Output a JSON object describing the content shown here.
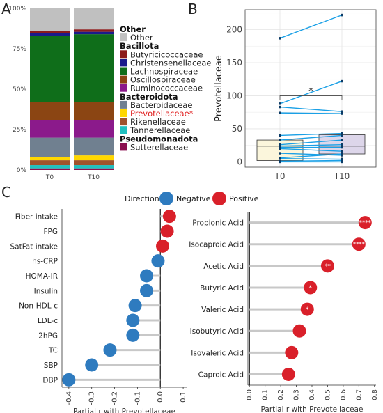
{
  "panel_labels": {
    "a": "A",
    "b": "B",
    "c": "C"
  },
  "colors": {
    "Other": "#c0c0c0",
    "Butyricicoccaceae": "#8b1a1a",
    "Christensenellaceae": "#1a1a8b",
    "Lachnospiraceae": "#0f6e1a",
    "Oscillospiraceae": "#8b4513",
    "Ruminococcaceae": "#8b1a8b",
    "Bacteroidaceae": "#708090",
    "Prevotellaceae": "#ffd700",
    "Rikenellaceae": "#a0522d",
    "Tannerellaceae": "#20c0c0",
    "Sutterellaceae": "#8b1050",
    "prevotella_label": "#e02020",
    "box_T0": "#fbf6dc",
    "box_T10": "#ddd6ea",
    "paired_line": "#1aa0e6",
    "negative": "#2e7bbf",
    "positive": "#d9202a",
    "stem": "#c8c8c8"
  },
  "chart_data": [
    {
      "id": "A",
      "type": "bar",
      "stacked": true,
      "categories": [
        "T0",
        "T10"
      ],
      "y_ticks": [
        "0%",
        "25%",
        "50%",
        "75%",
        "100%"
      ],
      "stack_order": [
        "Sutterellaceae",
        "Tannerellaceae",
        "Rikenellaceae",
        "Prevotellaceae",
        "Bacteroidaceae",
        "Ruminococcaceae",
        "Oscillospiraceae",
        "Lachnospiraceae",
        "Christensenellaceae",
        "Butyricicoccaceae",
        "Other"
      ],
      "series": [
        {
          "name": "Sutterellaceae",
          "values": [
            1.0,
            1.0
          ]
        },
        {
          "name": "Tannerellaceae",
          "values": [
            2.0,
            2.0
          ]
        },
        {
          "name": "Rikenellaceae",
          "values": [
            3.0,
            3.0
          ]
        },
        {
          "name": "Prevotellaceae",
          "values": [
            2.0,
            3.0
          ]
        },
        {
          "name": "Bacteroidaceae",
          "values": [
            12.0,
            11.0
          ]
        },
        {
          "name": "Ruminococcaceae",
          "values": [
            11.0,
            11.0
          ]
        },
        {
          "name": "Oscillospiraceae",
          "values": [
            11.0,
            11.0
          ]
        },
        {
          "name": "Lachnospiraceae",
          "values": [
            41.0,
            42.0
          ]
        },
        {
          "name": "Christensenellaceae",
          "values": [
            1.5,
            1.5
          ]
        },
        {
          "name": "Butyricicoccaceae",
          "values": [
            1.5,
            1.5
          ]
        },
        {
          "name": "Other",
          "values": [
            14.0,
            13.0
          ]
        }
      ],
      "legend": [
        {
          "kind": "header",
          "text": "Other"
        },
        {
          "kind": "item",
          "text": "Other",
          "key": "Other"
        },
        {
          "kind": "header",
          "text": "Bacillota"
        },
        {
          "kind": "item",
          "text": "Butyricicoccaceae",
          "key": "Butyricicoccaceae"
        },
        {
          "kind": "item",
          "text": "Christensenellaceae",
          "key": "Christensenellaceae"
        },
        {
          "kind": "item",
          "text": "Lachnospiraceae",
          "key": "Lachnospiraceae"
        },
        {
          "kind": "item",
          "text": "Oscillospiraceae",
          "key": "Oscillospiraceae"
        },
        {
          "kind": "item",
          "text": "Ruminococcaceae",
          "key": "Ruminococcaceae"
        },
        {
          "kind": "header",
          "text": "Bacteroidota"
        },
        {
          "kind": "item",
          "text": "Bacteroidaceae",
          "key": "Bacteroidaceae"
        },
        {
          "kind": "item",
          "text": "Prevotellaceae*",
          "key": "Prevotellaceae",
          "highlight": true
        },
        {
          "kind": "item",
          "text": "Rikenellaceae",
          "key": "Rikenellaceae"
        },
        {
          "kind": "item",
          "text": "Tannerellaceae",
          "key": "Tannerellaceae"
        },
        {
          "kind": "header",
          "text": "Pseudomonadota"
        },
        {
          "kind": "item",
          "text": "Sutterellaceae",
          "key": "Sutterellaceae"
        }
      ]
    },
    {
      "id": "B",
      "type": "box-paired",
      "categories": [
        "T0",
        "T10"
      ],
      "ylabel": "Prevotellaceae",
      "ylim": [
        -8,
        230
      ],
      "y_ticks": [
        0,
        50,
        100,
        150,
        200
      ],
      "boxes": [
        {
          "q1": 2,
          "median": 24,
          "q3": 33,
          "whisker_low": 0,
          "whisker_high": 33
        },
        {
          "q1": 12,
          "median": 24,
          "q3": 41,
          "whisker_low": 0,
          "whisker_high": 41
        }
      ],
      "pairs": [
        [
          187,
          222
        ],
        [
          88,
          122
        ],
        [
          83,
          76
        ],
        [
          74,
          73
        ],
        [
          40,
          43
        ],
        [
          33,
          40
        ],
        [
          26,
          33
        ],
        [
          24,
          26
        ],
        [
          22,
          22
        ],
        [
          20,
          16
        ],
        [
          13,
          10
        ],
        [
          6,
          12
        ],
        [
          5,
          4
        ],
        [
          1,
          2
        ],
        [
          0,
          0
        ]
      ],
      "significance": {
        "text": "*",
        "y": 100
      }
    },
    {
      "id": "C-left",
      "type": "lollipop",
      "xlabel": "Partial r with Prevotellaceae",
      "xlim": [
        -0.43,
        0.115
      ],
      "x_ticks": [
        -0.4,
        -0.3,
        -0.2,
        -0.1,
        0.0,
        0.1
      ],
      "x_tick_labels": [
        "-0.4",
        "-0.3",
        "-0.2",
        "-0.1",
        "0.0",
        "0.1"
      ],
      "categories": [
        "Fiber intake",
        "FPG",
        "SatFat intake",
        "hs-CRP",
        "HOMA-IR",
        "Insulin",
        "Non-HDL-c",
        "LDL-c",
        "2hPG",
        "TC",
        "SBP",
        "DBP"
      ],
      "values": [
        0.04,
        0.03,
        0.01,
        -0.01,
        -0.06,
        -0.06,
        -0.11,
        -0.12,
        -0.12,
        -0.22,
        -0.3,
        -0.4
      ],
      "labels": [
        "",
        "",
        "",
        "",
        "",
        "",
        "",
        "",
        "",
        "",
        "",
        ""
      ]
    },
    {
      "id": "C-right",
      "type": "lollipop",
      "xlabel": "Partial r with Prevotellaceae",
      "xlim": [
        -0.01,
        0.81
      ],
      "x_ticks": [
        0.0,
        0.1,
        0.2,
        0.3,
        0.4,
        0.5,
        0.6,
        0.7,
        0.8
      ],
      "x_tick_labels": [
        "0.0",
        "0.1",
        "0.2",
        "0.3",
        "0.4",
        "0.5",
        "0.6",
        "0.7",
        "0.8"
      ],
      "categories": [
        "Propionic Acid",
        "Isocaproic Acid",
        "Acetic Acid",
        "Butyric Acid",
        "Valeric Acid",
        "Isobutyric Acid",
        "Isovaleric Acid",
        "Caproic Acid"
      ],
      "values": [
        0.74,
        0.7,
        0.5,
        0.39,
        0.37,
        0.32,
        0.27,
        0.25
      ],
      "labels": [
        "****",
        "****",
        "**",
        "*",
        "*",
        "",
        "",
        ""
      ]
    }
  ],
  "direction_legend": {
    "title": "Direction",
    "items": [
      {
        "label": "Negative",
        "color": "#2e7bbf"
      },
      {
        "label": "Positive",
        "color": "#d9202a"
      }
    ]
  }
}
